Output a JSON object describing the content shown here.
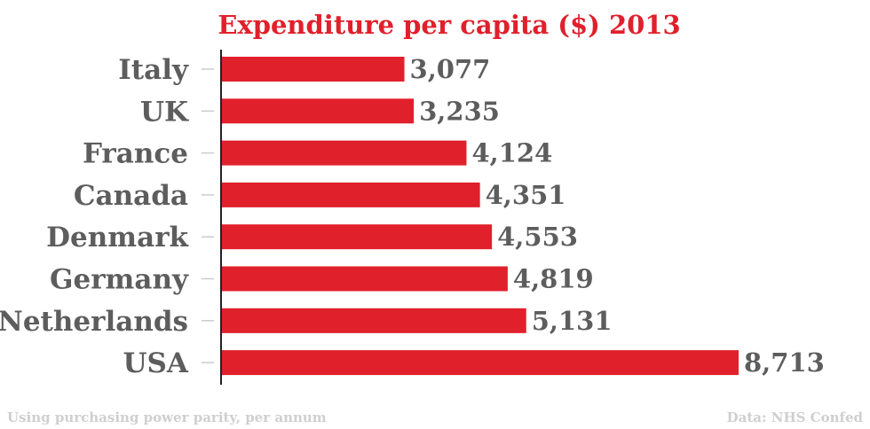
{
  "chart_data": {
    "type": "bar",
    "orientation": "horizontal",
    "title": "Expenditure per capita ($) 2013",
    "categories": [
      "Italy",
      "UK",
      "France",
      "Canada",
      "Denmark",
      "Germany",
      "Netherlands",
      "USA"
    ],
    "values": [
      3077,
      3235,
      4124,
      4351,
      4553,
      4819,
      5131,
      8713
    ],
    "value_labels": [
      "3,077",
      "3,235",
      "4,124",
      "4,351",
      "4,553",
      "4,819",
      "5,131",
      "8,713"
    ],
    "xlim": [
      0,
      8713
    ],
    "grid": false,
    "legend": "none",
    "bar_color": "#e0202b",
    "label_color": "#5d5d5d",
    "title_color": "#e0202b"
  },
  "footer": {
    "note": "Using purchasing power parity, per annum",
    "source": "Data: NHS Confed"
  }
}
